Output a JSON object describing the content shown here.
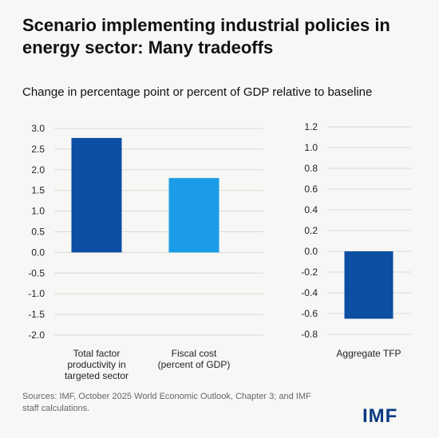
{
  "header": {
    "title_line1": "Scenario implementing industrial policies in",
    "title_line2": "energy sector: Many tradeoffs",
    "subtitle": "Change in percentage point or percent of GDP relative to baseline"
  },
  "footer": {
    "source_line1": "Sources: IMF, October 2025 World Economic Outlook, Chapter 3; and IMF",
    "source_line2": "staff calculations.",
    "logo": "IMF"
  },
  "colors": {
    "dark_blue": "#0b4ea2",
    "light_blue": "#1a9ce6",
    "grid": "#d9d9d9"
  },
  "chart_data": [
    {
      "type": "bar",
      "categories": [
        [
          "Total factor",
          "productivity in",
          "targeted sector"
        ],
        [
          "Fiscal cost",
          "(percent of GDP)"
        ]
      ],
      "values": [
        2.77,
        1.8
      ],
      "ylim": [
        -2.0,
        3.0
      ],
      "yticks": [
        "3.0",
        "2.5",
        "2.0",
        "1.5",
        "1.0",
        "0.5",
        "0.0",
        "-0.5",
        "-1.0",
        "-1.5",
        "-2.0"
      ],
      "bar_colors": [
        "#0b4ea2",
        "#1a9ce6"
      ],
      "grid": true
    },
    {
      "type": "bar",
      "categories": [
        [
          "Aggregate TFP"
        ]
      ],
      "values": [
        -0.65
      ],
      "ylim": [
        -0.8,
        1.2
      ],
      "yticks": [
        "1.2",
        "1.0",
        "0.8",
        "0.6",
        "0.4",
        "0.2",
        "0.0",
        "-0.2",
        "-0.4",
        "-0.6",
        "-0.8"
      ],
      "bar_colors": [
        "#0b4ea2"
      ],
      "grid": true
    }
  ]
}
